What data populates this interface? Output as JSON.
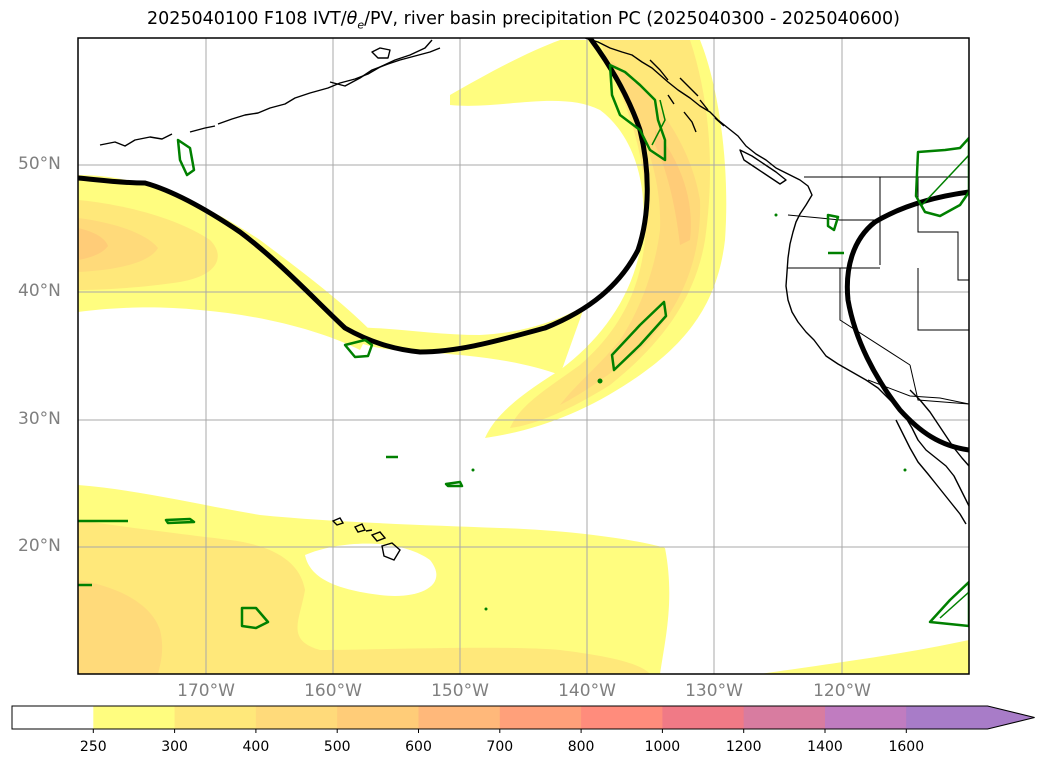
{
  "title": {
    "prefix": "2025040100 F108 IVT/",
    "theta": "θ",
    "theta_sub": "e",
    "suffix": "/PV, river basin precipitation PC (2025040300 - 2025040600)"
  },
  "map": {
    "projection": "PlateCarree",
    "lon_range": [
      -180,
      -110
    ],
    "lat_range": [
      10,
      60
    ],
    "gridlines": true,
    "lat_labels": [
      {
        "value": 50,
        "text": "50°N"
      },
      {
        "value": 40,
        "text": "40°N"
      },
      {
        "value": 30,
        "text": "30°N"
      },
      {
        "value": 20,
        "text": "20°N"
      }
    ],
    "lon_labels": [
      {
        "value": -170,
        "text": "170°W"
      },
      {
        "value": -160,
        "text": "160°W"
      },
      {
        "value": -150,
        "text": "150°W"
      },
      {
        "value": -140,
        "text": "140°W"
      },
      {
        "value": -130,
        "text": "130°W"
      },
      {
        "value": -120,
        "text": "120°W"
      }
    ],
    "pv_contour_color": "#000000",
    "precip_pc_color": "#008000",
    "coast_color": "#000000"
  },
  "colorbar": {
    "levels": [
      "250",
      "300",
      "400",
      "500",
      "600",
      "700",
      "800",
      "1000",
      "1200",
      "1400",
      "1600"
    ],
    "colors": [
      "#ffffff",
      "#fffd7f",
      "#ffe87a",
      "#ffda7a",
      "#ffcc78",
      "#ffb87a",
      "#ffa07a",
      "#ff8c7c",
      "#f07a86",
      "#d87ca0",
      "#c07cc0",
      "#a87cc8"
    ],
    "extend": "max"
  }
}
